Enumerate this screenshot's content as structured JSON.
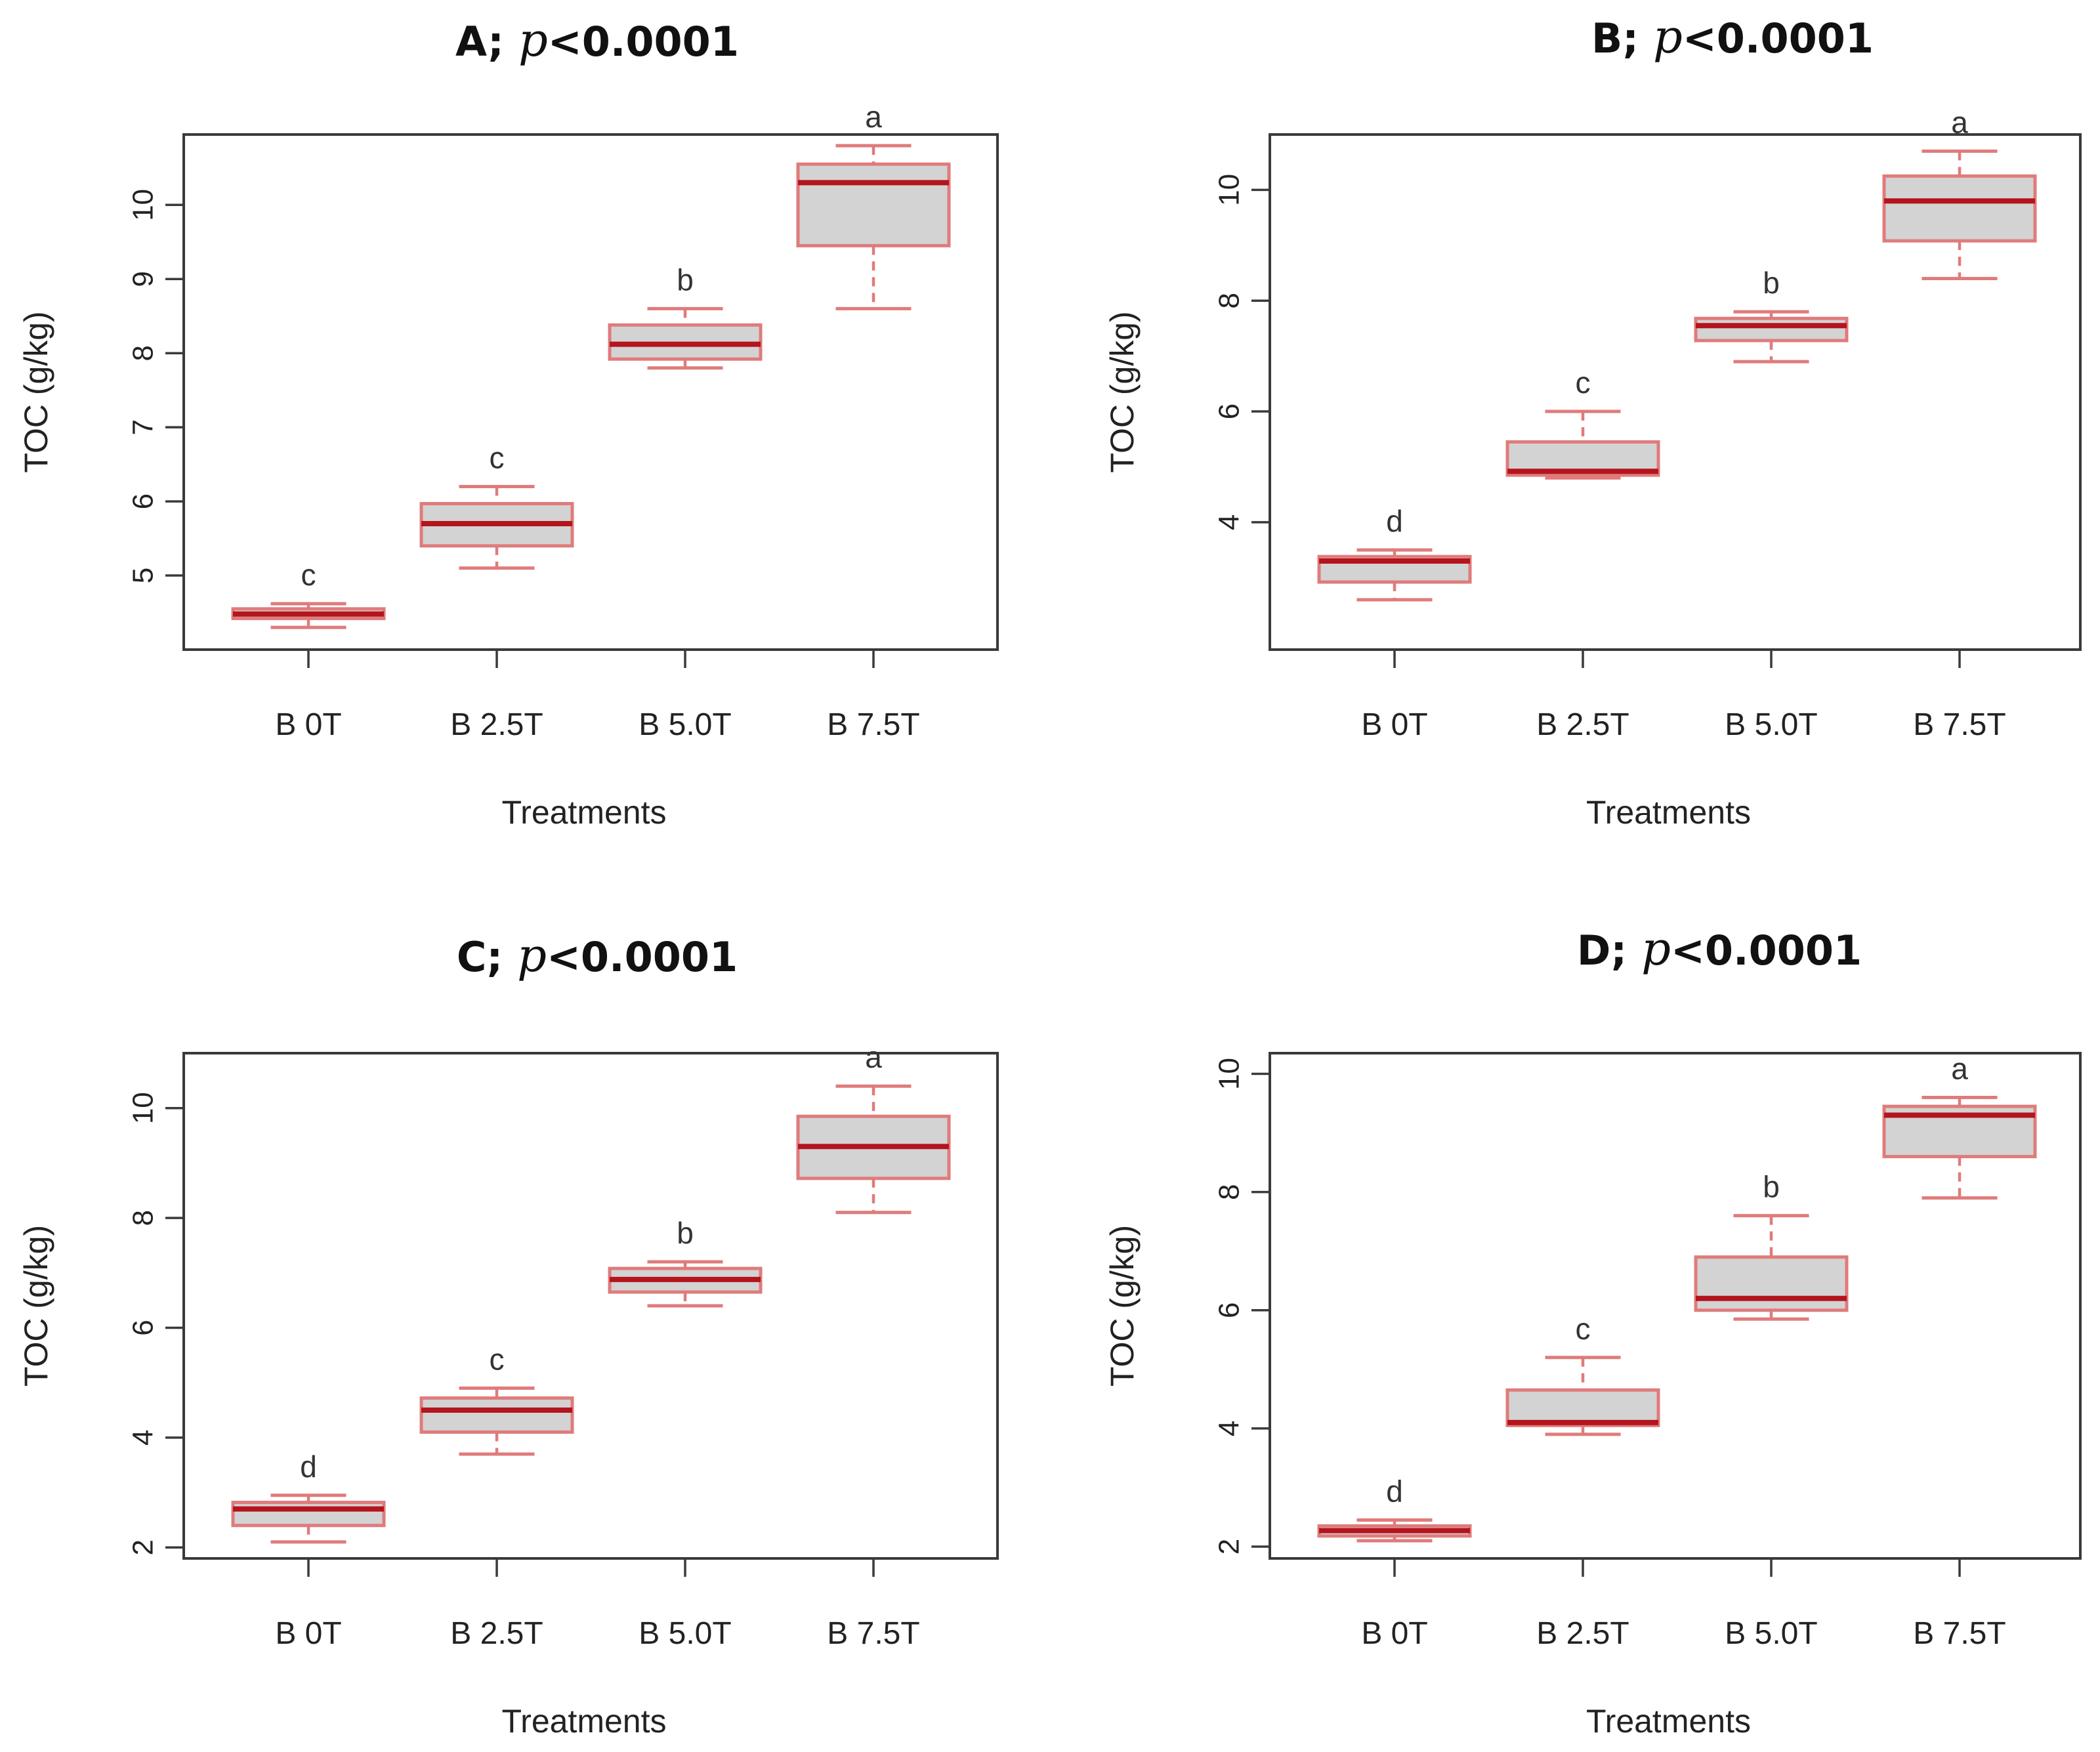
{
  "chart_data": [
    {
      "type": "boxplot",
      "panel": "A",
      "title_prefix": "A;",
      "title_p": "p",
      "title_suffix": "<0.0001",
      "xlabel": "Treatments",
      "ylabel": "TOC (g/kg)",
      "ylim": [
        4.0,
        10.95
      ],
      "yticks": [
        5,
        6,
        7,
        8,
        9,
        10
      ],
      "categories": [
        "B 0T",
        "B 2.5T",
        "B 5.0T",
        "B 7.5T"
      ],
      "boxes": [
        {
          "min": 4.3,
          "q1": 4.42,
          "median": 4.48,
          "q3": 4.55,
          "max": 4.62,
          "letter": "c"
        },
        {
          "min": 5.1,
          "q1": 5.4,
          "median": 5.7,
          "q3": 5.97,
          "max": 6.2,
          "letter": "c"
        },
        {
          "min": 7.8,
          "q1": 7.92,
          "median": 8.12,
          "q3": 8.38,
          "max": 8.6,
          "letter": "b"
        },
        {
          "min": 8.6,
          "q1": 9.45,
          "median": 10.3,
          "q3": 10.55,
          "max": 10.8,
          "letter": "a"
        }
      ]
    },
    {
      "type": "boxplot",
      "panel": "B",
      "title_prefix": "B;",
      "title_p": "p",
      "title_suffix": "<0.0001",
      "xlabel": "Treatments",
      "ylabel": "TOC (g/kg)",
      "ylim": [
        1.7,
        11.0
      ],
      "yticks": [
        4,
        6,
        8,
        10
      ],
      "categories": [
        "B 0T",
        "B 2.5T",
        "B 5.0T",
        "B 7.5T"
      ],
      "boxes": [
        {
          "min": 2.6,
          "q1": 2.92,
          "median": 3.3,
          "q3": 3.38,
          "max": 3.5,
          "letter": "d"
        },
        {
          "min": 4.8,
          "q1": 4.85,
          "median": 4.92,
          "q3": 5.45,
          "max": 6.0,
          "letter": "c"
        },
        {
          "min": 6.9,
          "q1": 7.28,
          "median": 7.55,
          "q3": 7.68,
          "max": 7.8,
          "letter": "b"
        },
        {
          "min": 8.4,
          "q1": 9.08,
          "median": 9.8,
          "q3": 10.25,
          "max": 10.7,
          "letter": "a"
        }
      ]
    },
    {
      "type": "boxplot",
      "panel": "C",
      "title_prefix": "C;",
      "title_p": "p",
      "title_suffix": "<0.0001",
      "xlabel": "Treatments",
      "ylabel": "TOC (g/kg)",
      "ylim": [
        1.8,
        11.0
      ],
      "yticks": [
        2,
        4,
        6,
        8,
        10
      ],
      "categories": [
        "B 0T",
        "B 2.5T",
        "B 5.0T",
        "B 7.5T"
      ],
      "boxes": [
        {
          "min": 2.1,
          "q1": 2.4,
          "median": 2.7,
          "q3": 2.82,
          "max": 2.95,
          "letter": "d"
        },
        {
          "min": 3.7,
          "q1": 4.1,
          "median": 4.5,
          "q3": 4.72,
          "max": 4.9,
          "letter": "c"
        },
        {
          "min": 6.4,
          "q1": 6.65,
          "median": 6.88,
          "q3": 7.08,
          "max": 7.2,
          "letter": "b"
        },
        {
          "min": 8.1,
          "q1": 8.72,
          "median": 9.3,
          "q3": 9.85,
          "max": 10.4,
          "letter": "a"
        }
      ]
    },
    {
      "type": "boxplot",
      "panel": "D",
      "title_prefix": "D;",
      "title_p": "p",
      "title_suffix": "<0.0001",
      "xlabel": "Treatments",
      "ylabel": "TOC (g/kg)",
      "ylim": [
        1.8,
        10.35
      ],
      "yticks": [
        2,
        4,
        6,
        8,
        10
      ],
      "categories": [
        "B 0T",
        "B 2.5T",
        "B 5.0T",
        "B 7.5T"
      ],
      "boxes": [
        {
          "min": 2.1,
          "q1": 2.18,
          "median": 2.27,
          "q3": 2.35,
          "max": 2.45,
          "letter": "d"
        },
        {
          "min": 3.9,
          "q1": 4.05,
          "median": 4.1,
          "q3": 4.65,
          "max": 5.2,
          "letter": "c"
        },
        {
          "min": 5.85,
          "q1": 6.0,
          "median": 6.2,
          "q3": 6.9,
          "max": 7.6,
          "letter": "b"
        },
        {
          "min": 7.9,
          "q1": 8.6,
          "median": 9.3,
          "q3": 9.45,
          "max": 9.6,
          "letter": "a"
        }
      ]
    }
  ]
}
